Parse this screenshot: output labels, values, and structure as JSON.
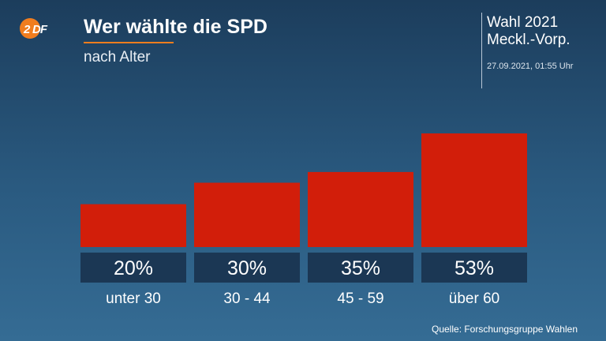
{
  "header": {
    "logo_text": "ZDF",
    "title": "Wer wählte die SPD",
    "subtitle": "nach Alter",
    "election_line1": "Wahl 2021",
    "election_line2": "Meckl.-Vorp.",
    "timestamp": "27.09.2021, 01:55 Uhr"
  },
  "colors": {
    "bar": "#d21e0a",
    "value_box": "#1b3754",
    "accent": "#f07d1e",
    "logo": "#f07d1e"
  },
  "chart_data": {
    "type": "bar",
    "title": "Wer wählte die SPD",
    "subtitle": "nach Alter",
    "categories": [
      "unter 30",
      "30 - 44",
      "45 - 59",
      "über 60"
    ],
    "values": [
      20,
      30,
      35,
      53
    ],
    "value_labels": [
      "20%",
      "30%",
      "35%",
      "53%"
    ],
    "unit": "%",
    "ylim": [
      0,
      53
    ],
    "grid": false,
    "legend": "none"
  },
  "footer": {
    "source": "Quelle: Forschungsgruppe Wahlen"
  }
}
